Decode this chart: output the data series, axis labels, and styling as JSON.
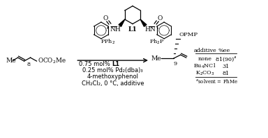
{
  "bg_color": "#ffffff",
  "ligand_label": "L1",
  "substrate_label": "8",
  "product_label": "9",
  "opmp": "OPMP",
  "table_col1": "additive",
  "table_col2": "%ee",
  "row1_add": "none",
  "row1_ee": "81(90)",
  "row2_add": "Bu₄NCl",
  "row2_ee": "31",
  "row3_add": "K₂CO₃",
  "row3_ee": "81",
  "footnote": "solvent = PhMe",
  "cond1a": "0.75 mol% ",
  "cond1b": "L1",
  "cond2": "0.25 mol% Pd₂(dba)₃",
  "cond3": "4-methoxyphenol",
  "cond4": "CH₂Cl₂, 0 °C, additive",
  "me_label": "Me",
  "oco2me": "OCO₂Me"
}
